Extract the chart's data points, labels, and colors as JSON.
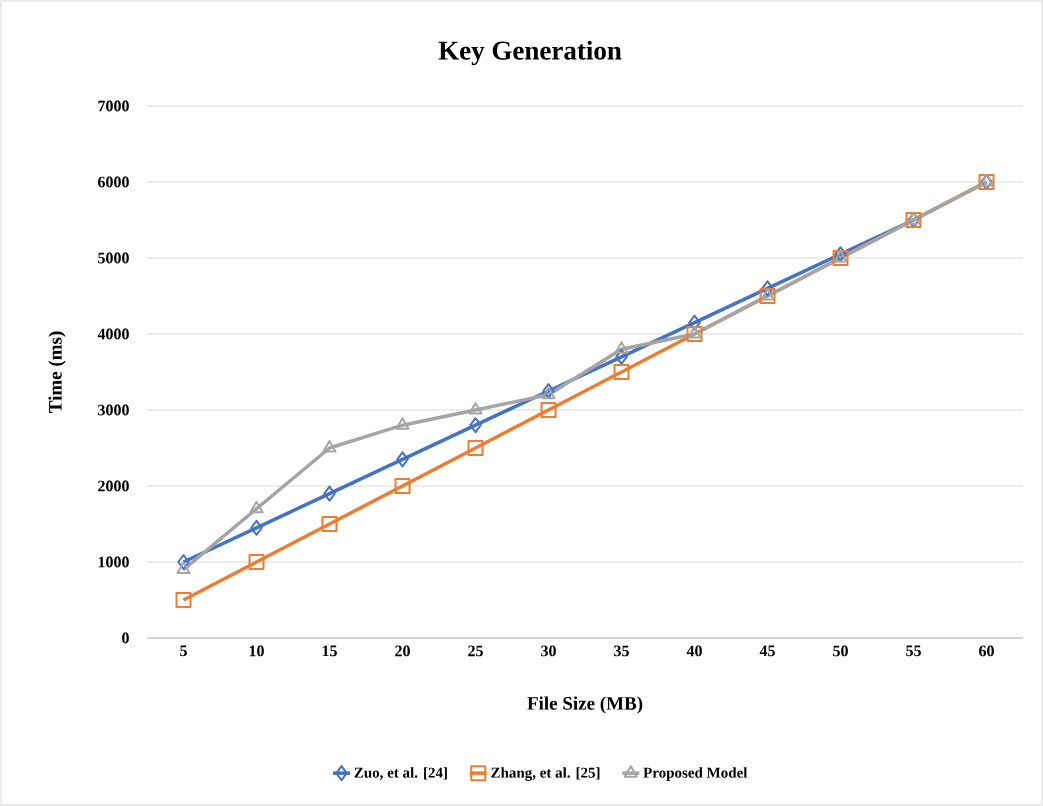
{
  "chart_data": {
    "type": "line",
    "title": "Key Generation",
    "xlabel": "File Size (MB)",
    "ylabel": "Time (ms)",
    "categories": [
      "5",
      "10",
      "15",
      "20",
      "25",
      "30",
      "35",
      "40",
      "45",
      "50",
      "55",
      "60"
    ],
    "series": [
      {
        "name": "Zuo, et al. [24]",
        "color": "#4472c4",
        "marker": "diamond",
        "values": [
          1000,
          1450,
          1900,
          2350,
          2800,
          3250,
          3700,
          4150,
          4600,
          5050,
          5500,
          6000
        ]
      },
      {
        "name": "Zhang, et al. [25]",
        "color": "#ed7d31",
        "marker": "square",
        "values": [
          500,
          1000,
          1500,
          2000,
          2500,
          3000,
          3500,
          4000,
          4500,
          5000,
          5500,
          6000
        ]
      },
      {
        "name": "Proposed Model",
        "color": "#a5a5a5",
        "marker": "triangle",
        "values": [
          900,
          1700,
          2500,
          2800,
          3000,
          3200,
          3800,
          4000,
          4500,
          5000,
          5500,
          6000
        ]
      }
    ],
    "ylim": [
      0,
      7000
    ],
    "yticks": [
      0,
      1000,
      2000,
      3000,
      4000,
      5000,
      6000,
      7000
    ],
    "grid": "y",
    "legend": "bottom",
    "line_style": "solid"
  }
}
